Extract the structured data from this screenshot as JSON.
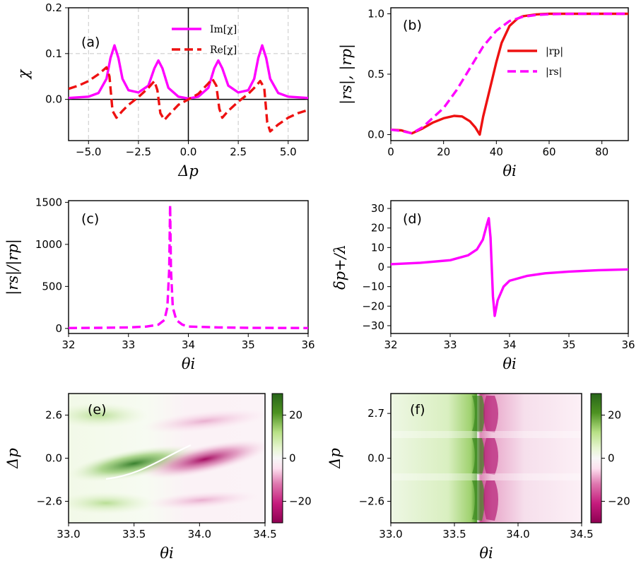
{
  "colors": {
    "magenta": "#ff00ff",
    "red": "#ee1111",
    "green": "#2e6f1f",
    "pink": "#a8005c"
  },
  "chart_data": [
    {
      "id": "a",
      "panel_label": "(a)",
      "type": "line",
      "xlabel": "Δp",
      "ylabel": "χ",
      "xlim": [
        -6,
        6
      ],
      "ylim": [
        -0.09,
        0.2
      ],
      "xticks": [
        -5,
        -2.5,
        0,
        2.5,
        5
      ],
      "xtick_labels": [
        "−5.0",
        "−2.5",
        "0.0",
        "2.5",
        "5.0"
      ],
      "yticks": [
        0,
        0.1,
        0.2
      ],
      "ytick_labels": [
        "0.0",
        "0.1",
        "0.2"
      ],
      "grid": true,
      "legend_position": "top-center",
      "series": [
        {
          "name": "Im[χ]",
          "style": "solid",
          "color": "#ff00ff",
          "x": [
            -6,
            -5,
            -4.5,
            -4.1,
            -3.9,
            -3.7,
            -3.5,
            -3.3,
            -3,
            -2.5,
            -2,
            -1.7,
            -1.5,
            -1.3,
            -1,
            -0.5,
            0,
            0.5,
            1,
            1.3,
            1.5,
            1.7,
            2,
            2.5,
            3,
            3.3,
            3.5,
            3.7,
            3.9,
            4.1,
            4.5,
            5,
            6
          ],
          "y": [
            0.003,
            0.006,
            0.014,
            0.045,
            0.09,
            0.118,
            0.09,
            0.045,
            0.02,
            0.015,
            0.03,
            0.068,
            0.085,
            0.068,
            0.025,
            0.006,
            0.002,
            0.006,
            0.025,
            0.068,
            0.085,
            0.068,
            0.03,
            0.015,
            0.02,
            0.045,
            0.09,
            0.118,
            0.09,
            0.045,
            0.014,
            0.006,
            0.003
          ]
        },
        {
          "name": "Re[χ]",
          "style": "dashed",
          "color": "#ee1111",
          "x": [
            -6,
            -5.5,
            -5,
            -4.5,
            -4.1,
            -3.95,
            -3.8,
            -3.6,
            -3.3,
            -3,
            -2.5,
            -2,
            -1.7,
            -1.55,
            -1.4,
            -1.2,
            -1,
            -0.5,
            0,
            0.5,
            1,
            1.2,
            1.4,
            1.55,
            1.7,
            2,
            2.5,
            3,
            3.3,
            3.6,
            3.8,
            3.95,
            4.1,
            4.5,
            5,
            5.5,
            6
          ],
          "y": [
            0.023,
            0.03,
            0.04,
            0.055,
            0.07,
            0.05,
            -0.025,
            -0.04,
            -0.025,
            -0.012,
            0.005,
            0.025,
            0.04,
            0.02,
            -0.03,
            -0.045,
            -0.035,
            -0.012,
            0.0,
            0.012,
            0.035,
            0.045,
            0.03,
            -0.02,
            -0.04,
            -0.025,
            -0.005,
            0.012,
            0.025,
            0.04,
            0.025,
            -0.05,
            -0.07,
            -0.055,
            -0.04,
            -0.03,
            -0.023
          ]
        }
      ]
    },
    {
      "id": "b",
      "panel_label": "(b)",
      "type": "line",
      "xlabel": "θi",
      "ylabel": "|rs|, |rp|",
      "xlim": [
        0,
        90
      ],
      "ylim": [
        -0.05,
        1.05
      ],
      "xticks": [
        0,
        20,
        40,
        60,
        80
      ],
      "xtick_labels": [
        "0",
        "20",
        "40",
        "60",
        "80"
      ],
      "yticks": [
        0,
        0.5,
        1
      ],
      "ytick_labels": [
        "0.0",
        "0.5",
        "1.0"
      ],
      "legend_position": "center-right",
      "series": [
        {
          "name": "|rp|",
          "style": "solid",
          "color": "#ee1111",
          "x": [
            0,
            4,
            8,
            12,
            16,
            20,
            24,
            27,
            30,
            32,
            33.7,
            35,
            38,
            40,
            42,
            45,
            48,
            50,
            55,
            60,
            70,
            80,
            90
          ],
          "y": [
            0.04,
            0.035,
            0.01,
            0.05,
            0.1,
            0.135,
            0.155,
            0.15,
            0.11,
            0.06,
            0.0,
            0.15,
            0.42,
            0.6,
            0.76,
            0.9,
            0.96,
            0.98,
            0.995,
            1.0,
            1.0,
            1.0,
            1.0
          ]
        },
        {
          "name": "|rs|",
          "style": "dashed",
          "color": "#ff00ff",
          "x": [
            0,
            4,
            8,
            12,
            16,
            20,
            25,
            30,
            35,
            40,
            45,
            50,
            55,
            60,
            70,
            80,
            90
          ],
          "y": [
            0.04,
            0.03,
            0.01,
            0.06,
            0.14,
            0.22,
            0.37,
            0.55,
            0.73,
            0.86,
            0.94,
            0.975,
            0.99,
            0.997,
            1.0,
            1.0,
            1.0
          ]
        }
      ]
    },
    {
      "id": "c",
      "panel_label": "(c)",
      "type": "line",
      "xlabel": "θi",
      "ylabel": "|rs|/|rp|",
      "xlim": [
        32,
        36
      ],
      "ylim": [
        -60,
        1520
      ],
      "xticks": [
        32,
        33,
        34,
        35,
        36
      ],
      "xtick_labels": [
        "32",
        "33",
        "34",
        "35",
        "36"
      ],
      "yticks": [
        0,
        500,
        1000,
        1500
      ],
      "ytick_labels": [
        "0",
        "500",
        "1000",
        "1500"
      ],
      "series": [
        {
          "name": "",
          "style": "dashed",
          "color": "#ff00ff",
          "x": [
            32,
            32.5,
            33,
            33.3,
            33.5,
            33.6,
            33.65,
            33.68,
            33.695,
            33.71,
            33.74,
            33.8,
            33.9,
            34,
            34.5,
            35,
            36
          ],
          "y": [
            5,
            7,
            12,
            22,
            45,
            100,
            250,
            700,
            1470,
            700,
            250,
            100,
            45,
            22,
            12,
            7,
            5
          ]
        }
      ]
    },
    {
      "id": "d",
      "panel_label": "(d)",
      "type": "line",
      "xlabel": "θi",
      "ylabel": "δp+/λ",
      "xlim": [
        32,
        36
      ],
      "ylim": [
        -34,
        34
      ],
      "xticks": [
        32,
        33,
        34,
        35,
        36
      ],
      "xtick_labels": [
        "32",
        "33",
        "34",
        "35",
        "36"
      ],
      "yticks": [
        -30,
        -20,
        -10,
        0,
        10,
        20,
        30
      ],
      "ytick_labels": [
        "−30",
        "−20",
        "−10",
        "0",
        "10",
        "20",
        "30"
      ],
      "series": [
        {
          "name": "",
          "style": "solid",
          "color": "#ff00ff",
          "x": [
            32,
            32.5,
            33,
            33.3,
            33.45,
            33.55,
            33.62,
            33.65,
            33.68,
            33.7,
            33.72,
            33.75,
            33.8,
            33.9,
            34,
            34.3,
            34.6,
            35,
            35.5,
            36
          ],
          "y": [
            1.5,
            2.2,
            3.5,
            6,
            9,
            14,
            22,
            25,
            15,
            0,
            -15,
            -25,
            -17,
            -10,
            -7,
            -4.5,
            -3.2,
            -2.3,
            -1.6,
            -1.2
          ]
        }
      ]
    },
    {
      "id": "e",
      "panel_label": "(e)",
      "type": "heatmap",
      "xlabel": "θi",
      "ylabel": "Δp",
      "xlim": [
        33.0,
        34.5
      ],
      "ylim": [
        -3.9,
        3.9
      ],
      "xticks": [
        33.0,
        33.5,
        34.0,
        34.5
      ],
      "xtick_labels": [
        "33.0",
        "33.5",
        "34.0",
        "34.5"
      ],
      "yticks": [
        -2.6,
        0.0,
        2.6
      ],
      "ytick_labels": [
        "−2.6",
        "0.0",
        "2.6"
      ],
      "colorbar": {
        "range": [
          -30,
          30
        ],
        "ticks": [
          -20,
          0,
          20
        ],
        "tick_labels": [
          "−20",
          "0",
          "20"
        ],
        "colormap": "PiYG"
      }
    },
    {
      "id": "f",
      "panel_label": "(f)",
      "type": "heatmap",
      "xlabel": "θi",
      "ylabel": "Δp",
      "xlim": [
        33.0,
        34.5
      ],
      "ylim": [
        -3.9,
        3.9
      ],
      "xticks": [
        33.0,
        33.5,
        34.0,
        34.5
      ],
      "xtick_labels": [
        "33.0",
        "33.5",
        "34.0",
        "34.5"
      ],
      "yticks": [
        -2.6,
        0.0,
        2.7
      ],
      "ytick_labels": [
        "−2.6",
        "0.0",
        "2.7"
      ],
      "colorbar": {
        "range": [
          -30,
          30
        ],
        "ticks": [
          -20,
          0,
          20
        ],
        "tick_labels": [
          "−20",
          "0",
          "20"
        ],
        "colormap": "PiYG"
      }
    }
  ]
}
